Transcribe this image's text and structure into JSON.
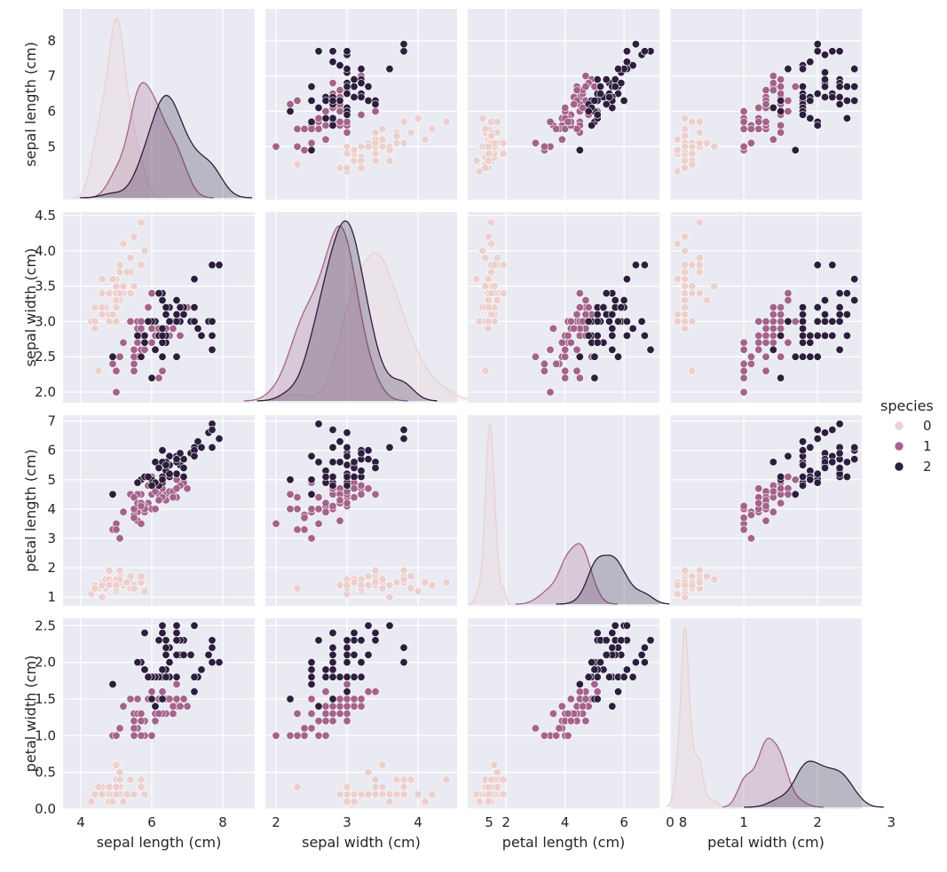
{
  "chart_data": {
    "type": "pairplot",
    "variables": [
      "sepal length (cm)",
      "sepal width (cm)",
      "petal length (cm)",
      "petal width (cm)"
    ],
    "axes": [
      {
        "label": "sepal length (cm)",
        "lim": [
          3.5,
          8.9
        ],
        "ticks": [
          4,
          5,
          6,
          7,
          8
        ],
        "row_ticks": [
          5,
          6,
          7,
          8
        ],
        "col_ticks": [
          4,
          6,
          8
        ]
      },
      {
        "label": "sepal width (cm)",
        "lim": [
          1.85,
          4.55
        ],
        "ticks": [
          2.0,
          2.5,
          3.0,
          3.5,
          4.0,
          4.5
        ],
        "row_ticks": [
          2.0,
          2.5,
          3.0,
          3.5,
          4.0,
          4.5
        ],
        "col_ticks": [
          2,
          3,
          4,
          5
        ]
      },
      {
        "label": "petal length (cm)",
        "lim": [
          0.7,
          7.2
        ],
        "ticks": [
          1,
          2,
          3,
          4,
          5,
          6,
          7
        ],
        "row_ticks": [
          1,
          2,
          3,
          4,
          5,
          6,
          7
        ],
        "col_ticks": [
          2,
          4,
          6,
          8
        ]
      },
      {
        "label": "petal width (cm)",
        "lim": [
          0.0,
          2.6
        ],
        "ticks": [
          0.0,
          0.5,
          1.0,
          1.5,
          2.0,
          2.5
        ],
        "row_ticks": [
          0.0,
          0.5,
          1.0,
          1.5,
          2.0,
          2.5
        ],
        "col_ticks": [
          0,
          1,
          2,
          3
        ]
      }
    ],
    "hue": {
      "title": "species",
      "levels": [
        {
          "label": "0",
          "color": "#ebd0ce"
        },
        {
          "label": "1",
          "color": "#a4638a"
        },
        {
          "label": "2",
          "color": "#2d1e3e"
        }
      ]
    },
    "series": [
      {
        "name": "0",
        "points": [
          [
            5.1,
            3.5,
            1.4,
            0.2
          ],
          [
            4.9,
            3.0,
            1.4,
            0.2
          ],
          [
            4.7,
            3.2,
            1.3,
            0.2
          ],
          [
            4.6,
            3.1,
            1.5,
            0.2
          ],
          [
            5.0,
            3.6,
            1.4,
            0.2
          ],
          [
            5.4,
            3.9,
            1.7,
            0.4
          ],
          [
            4.6,
            3.4,
            1.4,
            0.3
          ],
          [
            5.0,
            3.4,
            1.5,
            0.2
          ],
          [
            4.4,
            2.9,
            1.4,
            0.2
          ],
          [
            4.9,
            3.1,
            1.5,
            0.1
          ],
          [
            5.4,
            3.7,
            1.5,
            0.2
          ],
          [
            4.8,
            3.4,
            1.6,
            0.2
          ],
          [
            4.8,
            3.0,
            1.4,
            0.1
          ],
          [
            4.3,
            3.0,
            1.1,
            0.1
          ],
          [
            5.8,
            4.0,
            1.2,
            0.2
          ],
          [
            5.7,
            4.4,
            1.5,
            0.4
          ],
          [
            5.4,
            3.9,
            1.3,
            0.4
          ],
          [
            5.1,
            3.5,
            1.4,
            0.3
          ],
          [
            5.7,
            3.8,
            1.7,
            0.3
          ],
          [
            5.1,
            3.8,
            1.5,
            0.3
          ],
          [
            5.4,
            3.4,
            1.7,
            0.2
          ],
          [
            5.1,
            3.7,
            1.5,
            0.4
          ],
          [
            4.6,
            3.6,
            1.0,
            0.2
          ],
          [
            5.1,
            3.3,
            1.7,
            0.5
          ],
          [
            4.8,
            3.4,
            1.9,
            0.2
          ],
          [
            5.0,
            3.0,
            1.6,
            0.2
          ],
          [
            5.0,
            3.4,
            1.6,
            0.4
          ],
          [
            5.2,
            3.5,
            1.5,
            0.2
          ],
          [
            5.2,
            3.4,
            1.4,
            0.2
          ],
          [
            4.7,
            3.2,
            1.6,
            0.2
          ],
          [
            4.8,
            3.1,
            1.6,
            0.2
          ],
          [
            5.4,
            3.4,
            1.5,
            0.4
          ],
          [
            5.2,
            4.1,
            1.5,
            0.1
          ],
          [
            5.5,
            4.2,
            1.4,
            0.2
          ],
          [
            4.9,
            3.1,
            1.5,
            0.2
          ],
          [
            5.0,
            3.2,
            1.2,
            0.2
          ],
          [
            5.5,
            3.5,
            1.3,
            0.2
          ],
          [
            4.9,
            3.6,
            1.4,
            0.1
          ],
          [
            4.4,
            3.0,
            1.3,
            0.2
          ],
          [
            5.1,
            3.4,
            1.5,
            0.2
          ],
          [
            5.0,
            3.5,
            1.3,
            0.3
          ],
          [
            4.5,
            2.3,
            1.3,
            0.3
          ],
          [
            4.4,
            3.2,
            1.3,
            0.2
          ],
          [
            5.0,
            3.5,
            1.6,
            0.6
          ],
          [
            5.1,
            3.8,
            1.9,
            0.4
          ],
          [
            4.8,
            3.0,
            1.4,
            0.3
          ],
          [
            5.1,
            3.8,
            1.6,
            0.2
          ],
          [
            4.6,
            3.2,
            1.4,
            0.2
          ],
          [
            5.3,
            3.7,
            1.5,
            0.2
          ],
          [
            5.0,
            3.3,
            1.4,
            0.2
          ]
        ]
      },
      {
        "name": "1",
        "points": [
          [
            7.0,
            3.2,
            4.7,
            1.4
          ],
          [
            6.4,
            3.2,
            4.5,
            1.5
          ],
          [
            6.9,
            3.1,
            4.9,
            1.5
          ],
          [
            5.5,
            2.3,
            4.0,
            1.3
          ],
          [
            6.5,
            2.8,
            4.6,
            1.5
          ],
          [
            5.7,
            2.8,
            4.5,
            1.3
          ],
          [
            6.3,
            3.3,
            4.7,
            1.6
          ],
          [
            4.9,
            2.4,
            3.3,
            1.0
          ],
          [
            6.6,
            2.9,
            4.6,
            1.3
          ],
          [
            5.2,
            2.7,
            3.9,
            1.4
          ],
          [
            5.0,
            2.0,
            3.5,
            1.0
          ],
          [
            5.9,
            3.0,
            4.2,
            1.5
          ],
          [
            6.0,
            2.2,
            4.0,
            1.0
          ],
          [
            6.1,
            2.9,
            4.7,
            1.4
          ],
          [
            5.6,
            2.9,
            3.6,
            1.3
          ],
          [
            6.7,
            3.1,
            4.4,
            1.4
          ],
          [
            5.6,
            3.0,
            4.5,
            1.5
          ],
          [
            5.8,
            2.7,
            4.1,
            1.0
          ],
          [
            6.2,
            2.2,
            4.5,
            1.5
          ],
          [
            5.6,
            2.5,
            3.9,
            1.1
          ],
          [
            5.9,
            3.2,
            4.8,
            1.8
          ],
          [
            6.1,
            2.8,
            4.0,
            1.3
          ],
          [
            6.3,
            2.5,
            4.9,
            1.5
          ],
          [
            6.1,
            2.8,
            4.7,
            1.2
          ],
          [
            6.4,
            2.9,
            4.3,
            1.3
          ],
          [
            6.6,
            3.0,
            4.4,
            1.4
          ],
          [
            6.8,
            2.8,
            4.8,
            1.4
          ],
          [
            6.7,
            3.0,
            5.0,
            1.7
          ],
          [
            6.0,
            2.9,
            4.5,
            1.5
          ],
          [
            5.7,
            2.6,
            3.5,
            1.0
          ],
          [
            5.5,
            2.4,
            3.8,
            1.1
          ],
          [
            5.5,
            2.4,
            3.7,
            1.0
          ],
          [
            5.8,
            2.7,
            3.9,
            1.2
          ],
          [
            6.0,
            2.7,
            5.1,
            1.6
          ],
          [
            5.4,
            3.0,
            4.5,
            1.5
          ],
          [
            6.0,
            3.4,
            4.5,
            1.6
          ],
          [
            6.7,
            3.1,
            4.7,
            1.5
          ],
          [
            6.3,
            2.3,
            4.4,
            1.3
          ],
          [
            5.6,
            3.0,
            4.1,
            1.3
          ],
          [
            5.5,
            2.5,
            4.0,
            1.3
          ],
          [
            5.5,
            2.6,
            4.4,
            1.2
          ],
          [
            6.1,
            3.0,
            4.6,
            1.4
          ],
          [
            5.8,
            2.6,
            4.0,
            1.2
          ],
          [
            5.0,
            2.3,
            3.3,
            1.0
          ],
          [
            5.6,
            2.7,
            4.2,
            1.3
          ],
          [
            5.7,
            3.0,
            4.2,
            1.2
          ],
          [
            5.7,
            2.9,
            4.2,
            1.3
          ],
          [
            6.2,
            2.9,
            4.3,
            1.3
          ],
          [
            5.1,
            2.5,
            3.0,
            1.1
          ],
          [
            5.7,
            2.8,
            4.1,
            1.3
          ]
        ]
      },
      {
        "name": "2",
        "points": [
          [
            6.3,
            3.3,
            6.0,
            2.5
          ],
          [
            5.8,
            2.7,
            5.1,
            1.9
          ],
          [
            7.1,
            3.0,
            5.9,
            2.1
          ],
          [
            6.3,
            2.9,
            5.6,
            1.8
          ],
          [
            6.5,
            3.0,
            5.8,
            2.2
          ],
          [
            7.6,
            3.0,
            6.6,
            2.1
          ],
          [
            4.9,
            2.5,
            4.5,
            1.7
          ],
          [
            7.3,
            2.9,
            6.3,
            1.8
          ],
          [
            6.7,
            2.5,
            5.8,
            1.8
          ],
          [
            7.2,
            3.6,
            6.1,
            2.5
          ],
          [
            6.5,
            3.2,
            5.1,
            2.0
          ],
          [
            6.4,
            2.7,
            5.3,
            1.9
          ],
          [
            6.8,
            3.0,
            5.5,
            2.1
          ],
          [
            5.7,
            2.5,
            5.0,
            2.0
          ],
          [
            5.8,
            2.8,
            5.1,
            2.4
          ],
          [
            6.4,
            3.2,
            5.3,
            2.3
          ],
          [
            6.5,
            3.0,
            5.5,
            1.8
          ],
          [
            7.7,
            3.8,
            6.7,
            2.2
          ],
          [
            7.7,
            2.6,
            6.9,
            2.3
          ],
          [
            6.0,
            2.2,
            5.0,
            1.5
          ],
          [
            6.9,
            3.2,
            5.7,
            2.3
          ],
          [
            5.6,
            2.8,
            4.9,
            2.0
          ],
          [
            7.7,
            2.8,
            6.7,
            2.0
          ],
          [
            6.3,
            2.7,
            4.9,
            1.8
          ],
          [
            6.7,
            3.3,
            5.7,
            2.1
          ],
          [
            7.2,
            3.2,
            6.0,
            1.8
          ],
          [
            6.2,
            2.8,
            4.8,
            1.8
          ],
          [
            6.1,
            3.0,
            4.9,
            1.8
          ],
          [
            6.4,
            2.8,
            5.6,
            2.1
          ],
          [
            7.2,
            3.0,
            5.8,
            1.6
          ],
          [
            7.4,
            2.8,
            6.1,
            1.9
          ],
          [
            7.9,
            3.8,
            6.4,
            2.0
          ],
          [
            6.4,
            2.8,
            5.6,
            2.2
          ],
          [
            6.3,
            2.8,
            5.1,
            1.5
          ],
          [
            6.1,
            2.6,
            5.6,
            1.4
          ],
          [
            7.7,
            3.0,
            6.1,
            2.3
          ],
          [
            6.3,
            3.4,
            5.6,
            2.4
          ],
          [
            6.4,
            3.1,
            5.5,
            1.8
          ],
          [
            6.0,
            3.0,
            4.8,
            1.8
          ],
          [
            6.9,
            3.1,
            5.4,
            2.1
          ],
          [
            6.7,
            3.1,
            5.6,
            2.4
          ],
          [
            6.9,
            3.1,
            5.1,
            2.3
          ],
          [
            5.8,
            2.7,
            5.1,
            1.9
          ],
          [
            6.8,
            3.2,
            5.9,
            2.3
          ],
          [
            6.7,
            3.3,
            5.7,
            2.5
          ],
          [
            6.7,
            3.0,
            5.2,
            2.3
          ],
          [
            6.3,
            2.5,
            5.0,
            1.9
          ],
          [
            6.5,
            3.0,
            5.2,
            2.0
          ],
          [
            6.2,
            3.4,
            5.4,
            2.3
          ],
          [
            5.9,
            3.0,
            5.1,
            1.8
          ]
        ]
      }
    ]
  }
}
